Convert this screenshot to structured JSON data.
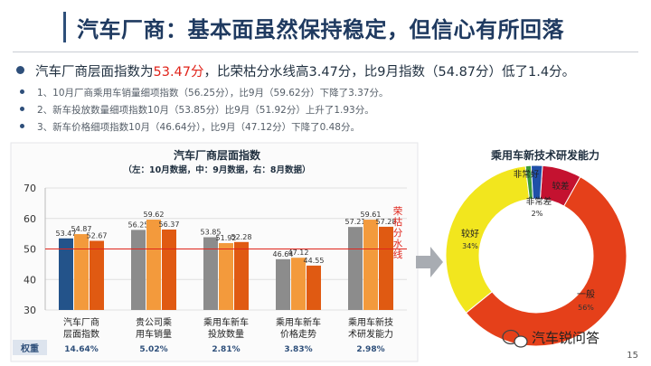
{
  "header": {
    "title": "汽车厂商：基本面虽然保持稳定，但信心有所回落"
  },
  "summary": {
    "main_pre": "汽车厂商层面指数为",
    "main_value": "53.47分",
    "main_post": "，比荣枯分水线高3.47分，比9月指数（54.87分）低了1.4分。",
    "sub": [
      "1、10月厂商乘用车销量细项指数（56.25分），比9月（59.62分）下降了3.37分。",
      "2、新车投放数量细项指数10月（53.85分）比9月（51.92分）上升了1.93分。",
      "3、新车价格细项指数10月（46.64分），比9月（47.12分）下降了0.48分。"
    ]
  },
  "chart_data": [
    {
      "type": "bar",
      "title": "汽车厂商层面指数",
      "subtitle": "（左：10月数据，中：9月数据，右：8月数据）",
      "categories": [
        "汽车厂商层面指数",
        "贵公司乘用车销量",
        "乘用车新车投放数量",
        "乘用车新车价格走势",
        "乘用车新技术研发能力"
      ],
      "category_lines": [
        [
          "汽车厂商",
          "层面指数"
        ],
        [
          "贵公司乘",
          "用车销量"
        ],
        [
          "乘用车新车",
          "投放数量"
        ],
        [
          "乘用车新车",
          "价格走势"
        ],
        [
          "乘用车新技",
          "术研发能力"
        ]
      ],
      "series": [
        {
          "values": [
            53.47,
            56.25,
            53.85,
            46.64,
            57.21
          ]
        },
        {
          "values": [
            54.87,
            59.62,
            51.92,
            47.12,
            59.61
          ]
        },
        {
          "values": [
            52.67,
            56.37,
            52.28,
            44.55,
            57.28
          ]
        }
      ],
      "ylim": [
        30,
        70
      ],
      "yticks": [
        30,
        40,
        50,
        60,
        70
      ],
      "threshold": {
        "value": 50,
        "label": "荣枯分水线",
        "color": "#e0241b"
      },
      "weights_label": "权重",
      "weights": [
        "14.64%",
        "5.02%",
        "2.81%",
        "3.83%",
        "2.98%"
      ],
      "colors": {
        "first_group_left": "#23538a",
        "left": "#8c8c8c",
        "middle": "#f39a3c",
        "right": "#e05a12"
      }
    },
    {
      "type": "pie",
      "title": "乘用车新技术研发能力",
      "labels": [
        "一般",
        "较好",
        "非常好",
        "非常差",
        "较差"
      ],
      "values": [
        56,
        34,
        1,
        2,
        7
      ],
      "value_labels": [
        "56%",
        "34%",
        "",
        "2%",
        ""
      ],
      "colors": [
        "#e5401a",
        "#f2e61e",
        "#3a9a3a",
        "#1f50a8",
        "#c41230"
      ]
    }
  ],
  "footer": {
    "brand": "汽车锐问答",
    "page_number": "15"
  },
  "icons": [
    "arrow-right-icon",
    "wechat-icon"
  ]
}
